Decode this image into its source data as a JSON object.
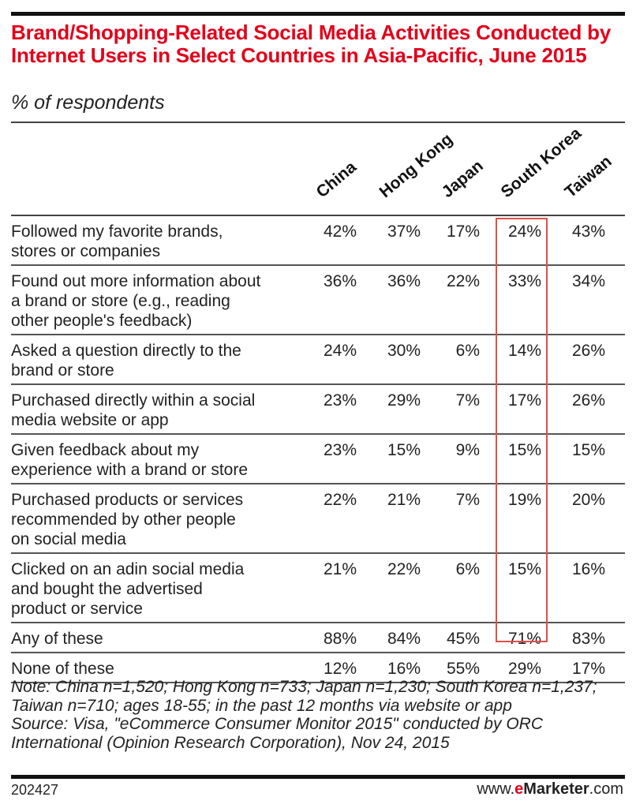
{
  "chart_data": {
    "type": "table",
    "title": "Brand/Shopping-Related Social Media Activities Conducted by Internet Users in Select Countries in Asia-Pacific, June 2015",
    "subtitle": "% of respondents",
    "columns": [
      "China",
      "Hong Kong",
      "Japan",
      "South Korea",
      "Taiwan"
    ],
    "highlighted_column": "South Korea",
    "highlight_color": "#e0504a",
    "title_color": "#e2001a",
    "rows": [
      {
        "label": "Followed my favorite brands,\nstores or companies",
        "values": [
          "42%",
          "37%",
          "17%",
          "24%",
          "43%"
        ]
      },
      {
        "label": "Found out more information about\na brand or store (e.g., reading\nother people's feedback)",
        "values": [
          "36%",
          "36%",
          "22%",
          "33%",
          "34%"
        ]
      },
      {
        "label": "Asked a question directly to the\nbrand or store",
        "values": [
          "24%",
          "30%",
          "6%",
          "14%",
          "26%"
        ]
      },
      {
        "label": "Purchased directly within a social\nmedia website or app",
        "values": [
          "23%",
          "29%",
          "7%",
          "17%",
          "26%"
        ]
      },
      {
        "label": "Given feedback about my\nexperience with a brand or store",
        "values": [
          "23%",
          "15%",
          "9%",
          "15%",
          "15%"
        ]
      },
      {
        "label": "Purchased products or services\nrecommended by other people\non social media",
        "values": [
          "22%",
          "21%",
          "7%",
          "19%",
          "20%"
        ]
      },
      {
        "label": "Clicked on an adin social media\nand bought the advertised\nproduct or service",
        "values": [
          "21%",
          "22%",
          "6%",
          "15%",
          "16%"
        ]
      },
      {
        "label": "Any of these",
        "values": [
          "88%",
          "84%",
          "45%",
          "71%",
          "83%"
        ]
      },
      {
        "label": "None of these",
        "values": [
          "12%",
          "16%",
          "55%",
          "29%",
          "17%"
        ]
      }
    ],
    "note": "Note: China n=1,520; Hong Kong n=733; Japan n=1,230; South Korea n=1,237; Taiwan n=710; ages 18-55; in the past 12 months via website or app",
    "source": "Source: Visa, \"eCommerce Consumer Monitor 2015\" conducted by ORC International (Opinion Research Corporation), Nov 24, 2015"
  },
  "footer": {
    "chart_id": "202427",
    "brand_prefix": "www.",
    "brand_e": "e",
    "brand_name": "Marketer",
    "brand_suffix": ".com"
  }
}
